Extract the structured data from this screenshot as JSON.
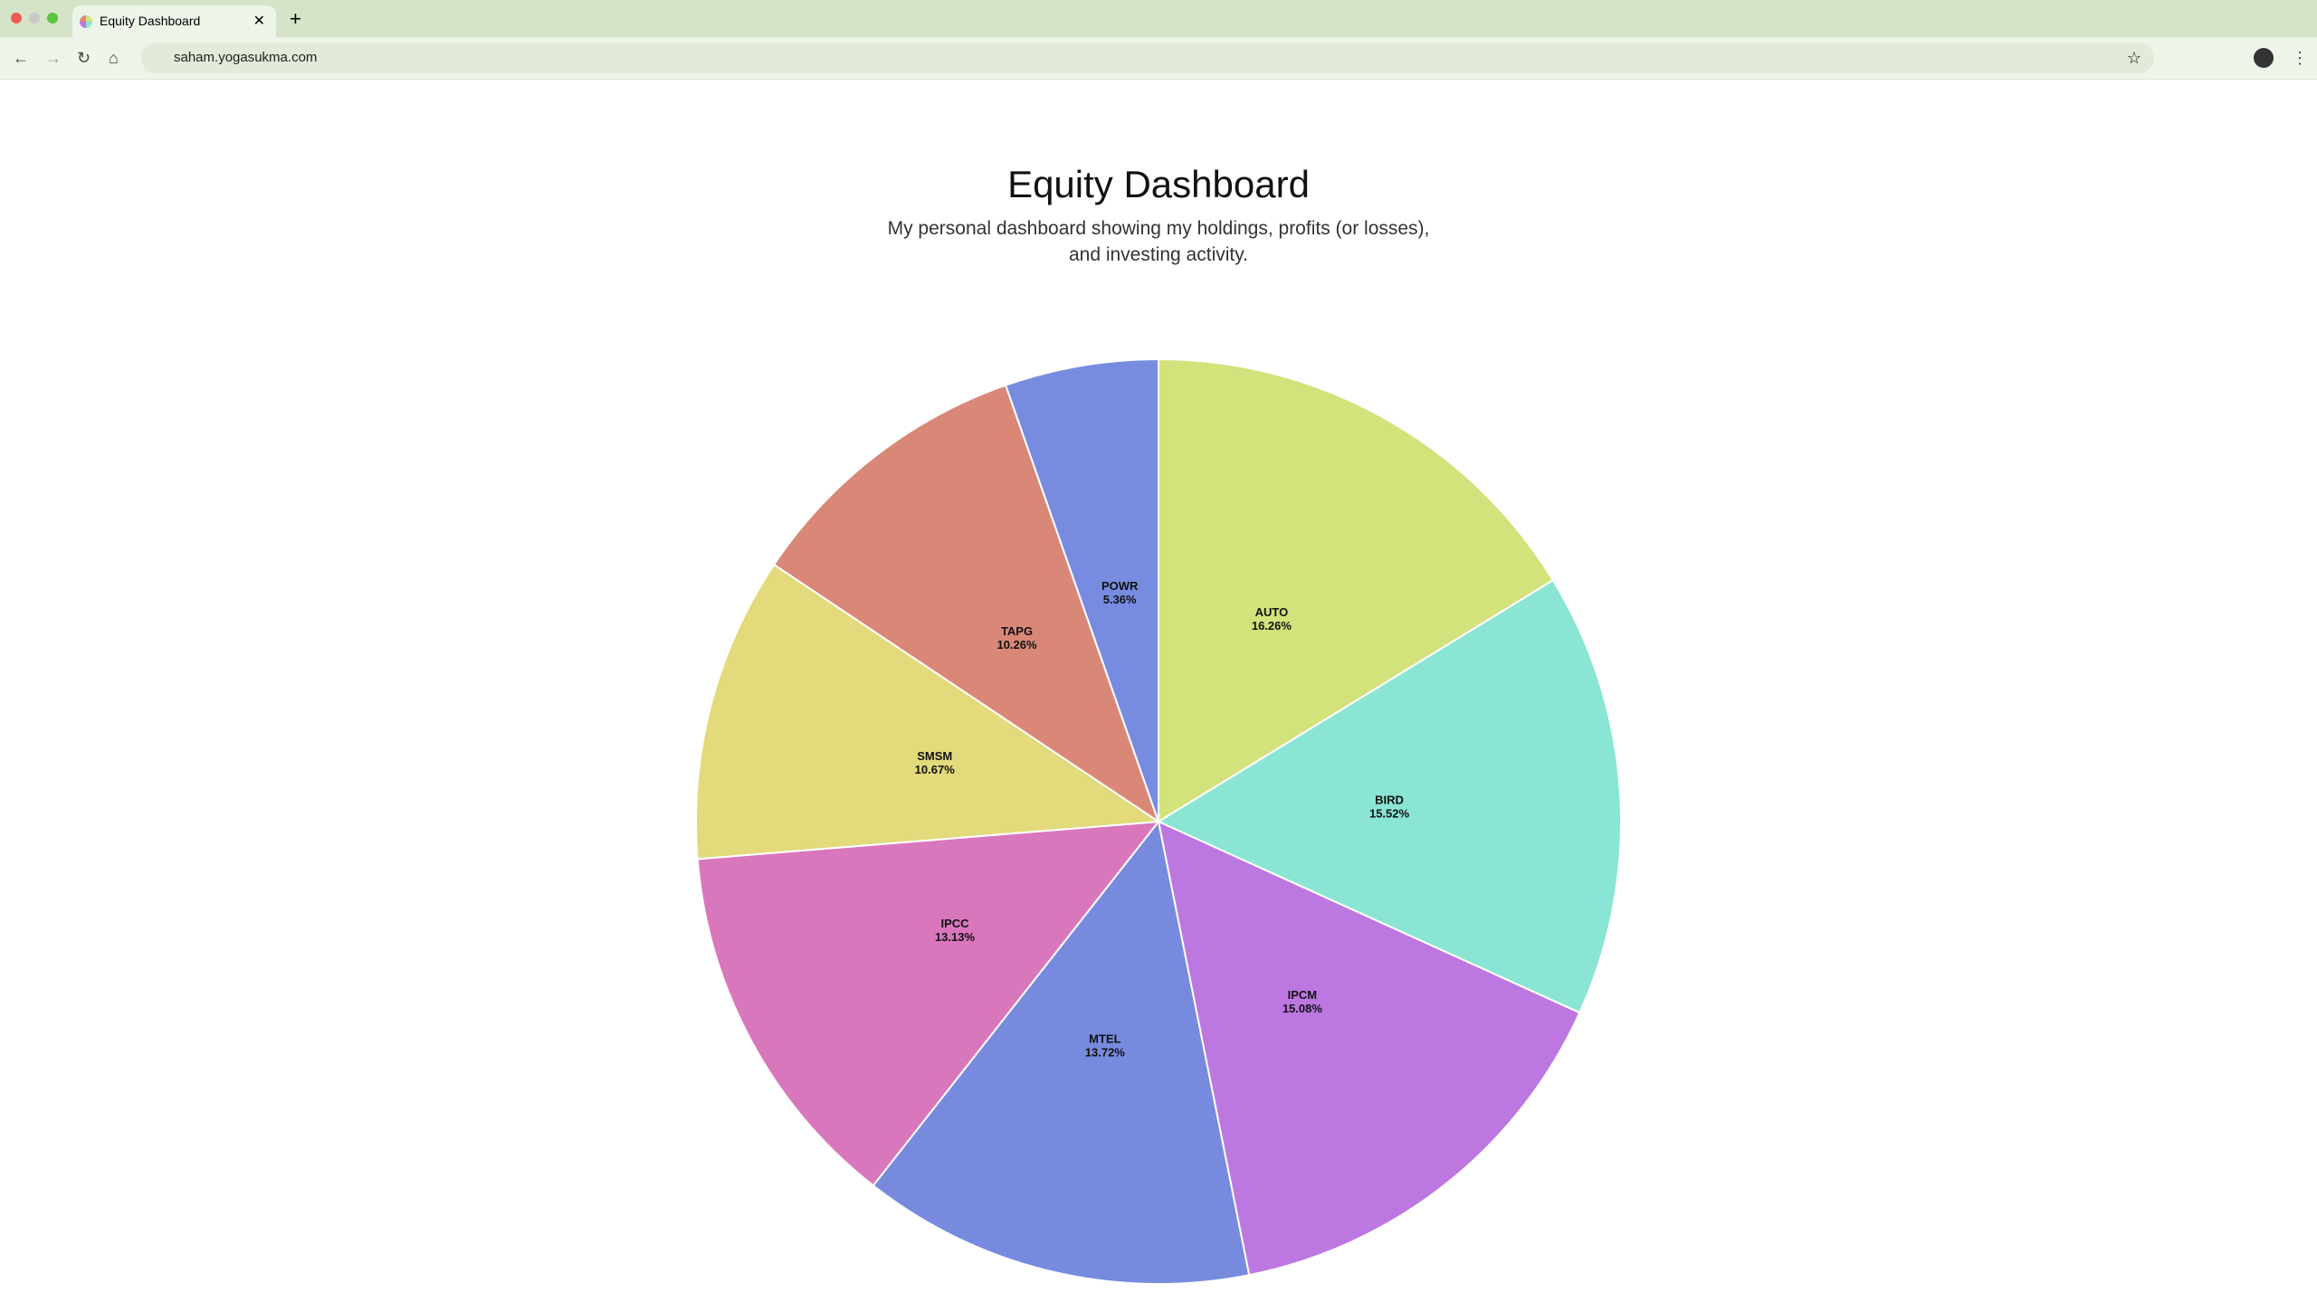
{
  "browser": {
    "tab_title": "Equity Dashboard",
    "url": "saham.yogasukma.com"
  },
  "chart_data": {
    "type": "pie",
    "title": "Equity Dashboard",
    "subtitle": "My personal dashboard showing my holdings, profits (or losses), and investing activity.",
    "categories": [
      "AUTO",
      "BIRD",
      "IPCM",
      "MTEL",
      "IPCC",
      "SMSM",
      "TAPG",
      "POWR"
    ],
    "values": [
      16.26,
      15.52,
      15.08,
      13.72,
      13.13,
      10.67,
      10.26,
      5.36
    ],
    "value_labels": [
      "16.26%",
      "15.52%",
      "15.08%",
      "13.72%",
      "13.13%",
      "10.67%",
      "10.26%",
      "5.36%"
    ],
    "colors": [
      "#d3e27a",
      "#8ae5d4",
      "#bc77e1",
      "#778ade",
      "#d977bd",
      "#e2da7b",
      "#d98878",
      "#778ce0"
    ]
  }
}
